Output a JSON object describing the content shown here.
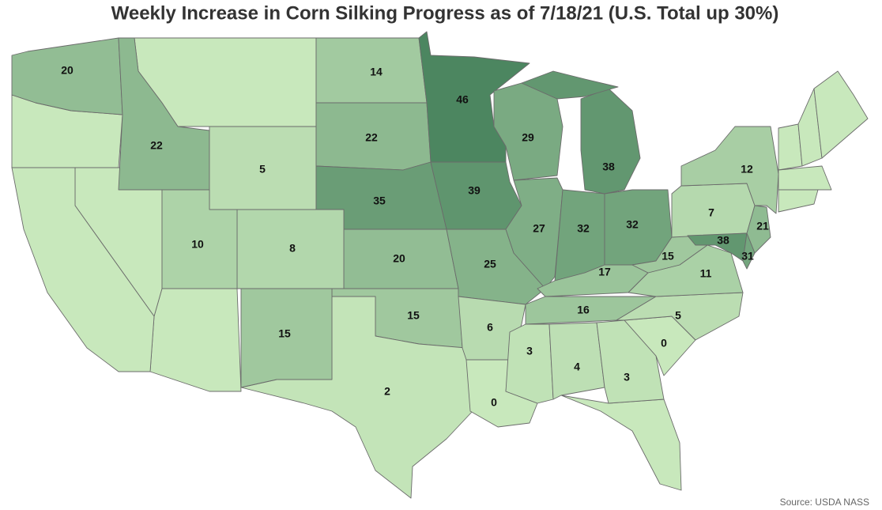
{
  "title": "Weekly Increase in Corn Silking Progress as of 7/18/21 (U.S. Total up 30%)",
  "source": "Source: USDA NASS",
  "map": {
    "type": "choropleth",
    "color_range": [
      "#c8e8bc",
      "#4c8660"
    ],
    "no_data_color": "#c8e8bc",
    "values": [
      20,
      22,
      5,
      14,
      22,
      35,
      20,
      15,
      2,
      15,
      8,
      10,
      46,
      39,
      25,
      29,
      27,
      32,
      38,
      32,
      17,
      16,
      6,
      0,
      3,
      4,
      3,
      0,
      5,
      11,
      15,
      7,
      12,
      21,
      38,
      31
    ]
  }
}
